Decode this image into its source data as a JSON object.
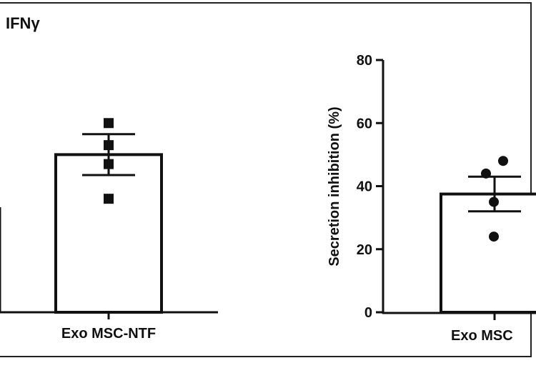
{
  "panel": {
    "title": "IFNγ"
  },
  "chart_data": [
    {
      "type": "bar",
      "categories": [
        "Exo MSC-NTF"
      ],
      "values": [
        50
      ],
      "error": [
        6.5
      ],
      "points": [
        [
          60,
          53,
          47,
          36
        ]
      ],
      "marker": "square",
      "xlabel": "",
      "ylabel": "",
      "ylim": [
        0,
        80
      ]
    },
    {
      "type": "bar",
      "categories": [
        "Exo MSC"
      ],
      "values": [
        37.5
      ],
      "error": [
        5.5
      ],
      "points": [
        [
          48,
          44,
          35,
          24
        ]
      ],
      "marker": "circle",
      "xlabel": "",
      "ylabel": "Secretion inhibition (%)",
      "yticks": [
        "0",
        "20",
        "40",
        "60",
        "80"
      ],
      "ylim": [
        0,
        80
      ]
    }
  ]
}
